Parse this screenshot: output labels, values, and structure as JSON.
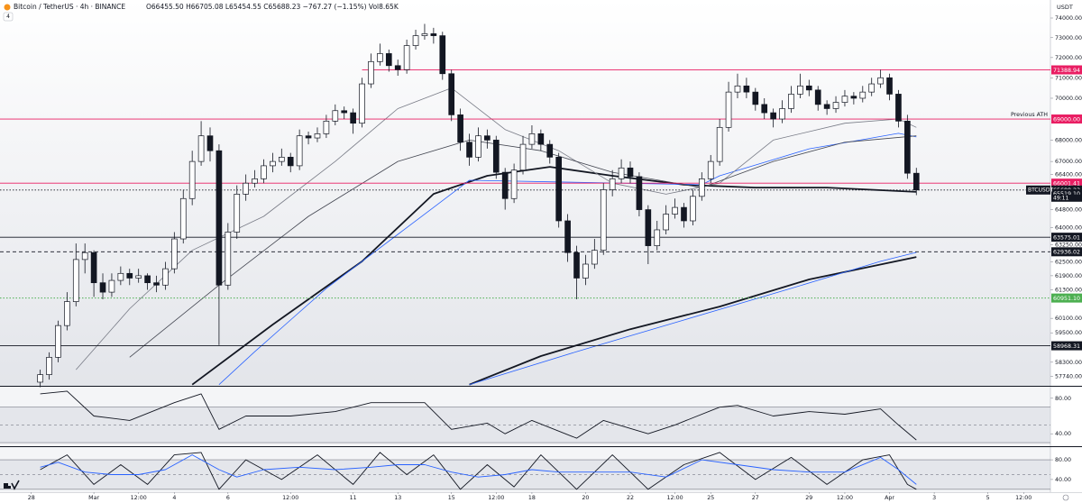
{
  "header": {
    "symbol": "Bitcoin / TetherUS · 4h · BINANCE",
    "ohlc": "O66455.50 H66705.08 L65454.55 C65688.23 −767.27 (−1.15%) Vol8.65K",
    "indicator_count": "4",
    "currency": "USDT"
  },
  "chart_data": [
    {
      "type": "candlestick",
      "log_scale": true,
      "xlim": [
        -4.5,
        113
      ],
      "ylim": [
        57355,
        74650
      ],
      "yticks": [
        {
          "value": 74000,
          "label": "74000.00"
        },
        {
          "value": 73000,
          "label": "73000.00"
        },
        {
          "value": 72000,
          "label": "72000.00"
        },
        {
          "value": 71000,
          "label": "71000.00"
        },
        {
          "value": 70000,
          "label": "70000.00"
        },
        {
          "value": 68000,
          "label": "68000.00"
        },
        {
          "value": 67000,
          "label": "67000.00"
        },
        {
          "value": 66400,
          "label": "66400.00"
        },
        {
          "value": 64800,
          "label": "64800.00"
        },
        {
          "value": 64000,
          "label": "64000.00"
        },
        {
          "value": 63250,
          "label": "63250.00"
        },
        {
          "value": 62500,
          "label": "62500.00"
        },
        {
          "value": 61900,
          "label": "61900.00"
        },
        {
          "value": 61300,
          "label": "61300.00"
        },
        {
          "value": 60100,
          "label": "60100.00"
        },
        {
          "value": 59500,
          "label": "59500.00"
        },
        {
          "value": 58300,
          "label": "58300.00"
        },
        {
          "value": 57740,
          "label": "57740.00"
        }
      ],
      "xticks": [
        {
          "value": -1,
          "label": "28"
        },
        {
          "value": 6,
          "label": "Mar"
        },
        {
          "value": 11,
          "label": "12:00"
        },
        {
          "value": 15,
          "label": "4"
        },
        {
          "value": 21,
          "label": "6"
        },
        {
          "value": 28,
          "label": "12:00"
        },
        {
          "value": 35,
          "label": "11"
        },
        {
          "value": 40,
          "label": "13"
        },
        {
          "value": 46,
          "label": "15"
        },
        {
          "value": 51,
          "label": "12:00"
        },
        {
          "value": 55,
          "label": "18"
        },
        {
          "value": 61,
          "label": "20"
        },
        {
          "value": 66,
          "label": "22"
        },
        {
          "value": 71,
          "label": "12:00"
        },
        {
          "value": 75,
          "label": "25"
        },
        {
          "value": 80,
          "label": "27"
        },
        {
          "value": 86,
          "label": "29"
        },
        {
          "value": 90,
          "label": "12:00"
        },
        {
          "value": 95,
          "label": "Apr"
        },
        {
          "value": 100,
          "label": "3"
        },
        {
          "value": 106,
          "label": "5"
        },
        {
          "value": 110,
          "label": "12:00"
        }
      ],
      "up_color": "#ffffff",
      "down_color": "#131722",
      "open": [
        57500,
        57800,
        58500,
        59800,
        60800,
        62600,
        62900,
        61600,
        61200,
        61700,
        62000,
        61800,
        61900,
        61600,
        61500,
        62200,
        63500,
        65300,
        67000,
        68200,
        67500,
        61500,
        63800,
        65500,
        66000,
        66200,
        66800,
        67000,
        67200,
        66800,
        68200,
        68100,
        68300,
        68900,
        69400,
        69300,
        68800,
        70700,
        71800,
        72200,
        71600,
        71400,
        72600,
        73100,
        73200,
        73100,
        71200,
        69200,
        67900,
        67200,
        68200,
        68000,
        66500,
        65300,
        66600,
        67800,
        68300,
        67800,
        67200,
        64300,
        62900,
        61800,
        62400,
        63000,
        65700,
        66200,
        66700,
        66300,
        64800,
        63200,
        63900,
        64600,
        64900,
        64300,
        65400,
        66200,
        67000,
        68600,
        70300,
        70600,
        70300,
        69700,
        69300,
        69000,
        69500,
        70200,
        70600,
        70400,
        69700,
        69500,
        69800,
        70100,
        70000,
        70300,
        70700,
        71000,
        70200,
        68900,
        66455.5
      ],
      "high": [
        58000,
        58700,
        60000,
        61200,
        63300,
        63300,
        63000,
        62000,
        62000,
        62300,
        62200,
        62200,
        62000,
        61900,
        62500,
        63800,
        65700,
        67500,
        68900,
        68600,
        67800,
        64200,
        65900,
        66400,
        66600,
        67100,
        67400,
        67600,
        67400,
        68500,
        68400,
        68600,
        69200,
        69700,
        69600,
        69500,
        71000,
        72200,
        72700,
        72400,
        71900,
        72900,
        73400,
        73700,
        73500,
        73300,
        71400,
        69500,
        68300,
        68600,
        68500,
        68200,
        66700,
        66900,
        68200,
        68700,
        68500,
        68000,
        67400,
        64600,
        63200,
        62800,
        63500,
        66000,
        66600,
        67100,
        67000,
        66500,
        65000,
        64300,
        65000,
        65300,
        65100,
        65700,
        66500,
        67300,
        69000,
        70800,
        71200,
        71000,
        70500,
        70000,
        69500,
        69900,
        70600,
        71200,
        70900,
        70600,
        69900,
        70100,
        70400,
        70300,
        70600,
        71000,
        71400,
        71200,
        70400,
        69200,
        66705.08
      ],
      "low": [
        57300,
        57600,
        58300,
        59600,
        60600,
        62000,
        61000,
        60900,
        61000,
        61500,
        61500,
        61600,
        61300,
        61200,
        61300,
        62000,
        63300,
        65000,
        66800,
        67000,
        59000,
        61300,
        63500,
        65200,
        65800,
        66000,
        66500,
        66800,
        66500,
        66600,
        67800,
        67900,
        68100,
        68700,
        69000,
        68300,
        68600,
        70500,
        71600,
        71300,
        71100,
        71200,
        72400,
        72900,
        72700,
        70900,
        68900,
        67500,
        66800,
        67000,
        67600,
        66200,
        64800,
        65100,
        66400,
        67600,
        67500,
        66900,
        64000,
        62500,
        60900,
        61500,
        62200,
        62800,
        65400,
        66000,
        66000,
        64500,
        62400,
        63000,
        63700,
        64400,
        64000,
        64100,
        65200,
        66000,
        66800,
        68400,
        70000,
        70000,
        69400,
        69000,
        68600,
        68800,
        69300,
        70000,
        70100,
        69400,
        69200,
        69300,
        69600,
        69700,
        69800,
        70100,
        70500,
        69900,
        68600,
        66200,
        65454.55
      ],
      "close": [
        57800,
        58500,
        59800,
        60800,
        62600,
        62900,
        61600,
        61200,
        61700,
        62000,
        61800,
        61900,
        61600,
        61500,
        62200,
        63500,
        65300,
        67000,
        68200,
        67500,
        61500,
        63800,
        65500,
        66000,
        66200,
        66800,
        67000,
        67200,
        66800,
        68200,
        68100,
        68300,
        68900,
        69400,
        69300,
        68800,
        70700,
        71800,
        72200,
        71600,
        71400,
        72600,
        73100,
        73200,
        73100,
        71200,
        69200,
        67900,
        67200,
        68200,
        68000,
        66500,
        65300,
        66600,
        67800,
        68300,
        67800,
        67200,
        64300,
        62900,
        61800,
        62400,
        63000,
        65700,
        66200,
        66700,
        66300,
        64800,
        63200,
        63900,
        64600,
        64900,
        64300,
        65400,
        66200,
        67000,
        68600,
        70300,
        70600,
        70300,
        69700,
        69300,
        69000,
        69500,
        70200,
        70600,
        70400,
        69700,
        69500,
        69800,
        70100,
        70000,
        70300,
        70700,
        71000,
        70200,
        68900,
        66455.5,
        65688.23
      ],
      "overlays": [
        {
          "color": "#131722",
          "style": "thick",
          "x": [
            17,
            26,
            36,
            44,
            50,
            57,
            64,
            72,
            80,
            88,
            98
          ],
          "values": [
            57400,
            59840,
            62520,
            65510,
            66340,
            66750,
            66340,
            65930,
            65800,
            65800,
            65600
          ]
        },
        {
          "color": "#131722",
          "style": "thick",
          "x": [
            48,
            56,
            66,
            76,
            86,
            98
          ],
          "values": [
            57400,
            58550,
            59650,
            60590,
            61740,
            62710
          ]
        },
        {
          "color": "#2962ff",
          "style": "thin",
          "x": [
            20,
            24,
            28,
            32,
            36,
            40,
            44,
            48,
            74,
            76,
            81,
            86,
            92,
            96,
            98
          ],
          "values": [
            57400,
            58730,
            60030,
            61360,
            62520,
            63700,
            64900,
            66130,
            65930,
            66340,
            66960,
            67590,
            68020,
            68320,
            68150
          ]
        },
        {
          "color": "#2962ff",
          "style": "thin",
          "x": [
            48,
            60,
            72,
            84,
            94,
            98
          ],
          "values": [
            57400,
            58730,
            60030,
            61360,
            62520,
            62910
          ]
        },
        {
          "color": "#787b86",
          "style": "thin",
          "x": [
            4,
            10,
            17,
            25,
            33,
            40,
            46,
            52,
            58,
            64,
            70,
            76,
            82,
            90,
            96,
            98
          ],
          "values": [
            58000,
            60500,
            63000,
            64500,
            67000,
            69500,
            70500,
            68500,
            67500,
            66000,
            65500,
            66000,
            68000,
            68800,
            69000,
            68600
          ]
        },
        {
          "color": "#434651",
          "style": "thin",
          "x": [
            10,
            20,
            30,
            40,
            48,
            56,
            64,
            74,
            82,
            90,
            98
          ],
          "values": [
            58500,
            61500,
            64500,
            67000,
            68000,
            67500,
            66500,
            65800,
            67000,
            67900,
            68200
          ]
        }
      ],
      "levels": [
        {
          "price": 71388.94,
          "color": "#e91e63",
          "line": "solid",
          "start": 36
        },
        {
          "price": {
            "value": 69000,
            "label": "69000.00"
          },
          "color": "#e91e63",
          "line": "solid"
        },
        {
          "price": 66001.41,
          "color": "#e91e63",
          "line": "solid"
        },
        {
          "price": 65688.23,
          "color": "#131722",
          "line": "dotted"
        },
        {
          "price": {
            "value": 65519.1,
            "label": "65519.10"
          },
          "color": "#131722",
          "line": "none"
        },
        {
          "price": 63575.01,
          "color": "#131722",
          "line": "solid"
        },
        {
          "price": 62936.02,
          "color": "#131722",
          "line": "dashed"
        },
        {
          "price": {
            "value": 60951.1,
            "label": "60951.10"
          },
          "color": "#4caf50",
          "line": "dotted"
        },
        {
          "price": 58968.31,
          "color": "#131722",
          "line": "solid"
        }
      ],
      "previous_ath_note": "Previous ATH",
      "ticker": "BTCUSDT",
      "countdown": "49:11"
    },
    {
      "type": "line",
      "xlim": [
        -4.5,
        113
      ],
      "ylim": [
        27,
        92
      ],
      "yticks": [
        {
          "value": 80,
          "label": "80.00"
        },
        {
          "value": 40,
          "label": "40.00"
        }
      ],
      "levels": [
        70,
        50,
        30
      ],
      "series": [
        {
          "color": "#131722",
          "x": [
            0,
            3,
            6,
            10,
            15,
            18,
            20,
            23,
            28,
            33,
            37,
            43,
            46,
            50,
            52,
            55,
            60,
            63,
            68,
            71,
            76,
            78,
            82,
            86,
            90,
            94,
            96,
            98
          ],
          "values": [
            85,
            88,
            60,
            55,
            75,
            85,
            45,
            60,
            60,
            65,
            75,
            75,
            45,
            52,
            40,
            55,
            35,
            55,
            40,
            50,
            70,
            72,
            60,
            65,
            62,
            68,
            50,
            33
          ]
        }
      ]
    },
    {
      "type": "line",
      "xlim": [
        -4.5,
        113
      ],
      "ylim": [
        16,
        104
      ],
      "yticks": [
        {
          "value": 80,
          "label": "80.00"
        },
        {
          "value": 40,
          "label": "40.00"
        }
      ],
      "levels": [
        80,
        50,
        20
      ],
      "series": [
        {
          "color": "#131722",
          "x": [
            0,
            3,
            6,
            9,
            12,
            15,
            18,
            20,
            23,
            27,
            31,
            35,
            38,
            41,
            44,
            47,
            50,
            53,
            56,
            60,
            64,
            68,
            72,
            76,
            80,
            84,
            88,
            92,
            95,
            97,
            98
          ],
          "values": [
            60,
            90,
            30,
            70,
            30,
            90,
            95,
            20,
            80,
            40,
            90,
            30,
            95,
            50,
            90,
            20,
            70,
            25,
            90,
            20,
            90,
            20,
            70,
            95,
            40,
            85,
            30,
            80,
            90,
            30,
            20
          ]
        },
        {
          "color": "#2962ff",
          "x": [
            0,
            2,
            5,
            8,
            11,
            14,
            17,
            20,
            22,
            25,
            29,
            33,
            37,
            40,
            43,
            46,
            49,
            52,
            55,
            58,
            62,
            66,
            70,
            74,
            78,
            82,
            86,
            90,
            94,
            96,
            98
          ],
          "values": [
            65,
            75,
            55,
            50,
            50,
            60,
            90,
            60,
            45,
            60,
            65,
            60,
            65,
            70,
            70,
            55,
            45,
            50,
            60,
            55,
            55,
            55,
            45,
            80,
            70,
            60,
            55,
            55,
            85,
            60,
            30
          ]
        }
      ]
    }
  ]
}
